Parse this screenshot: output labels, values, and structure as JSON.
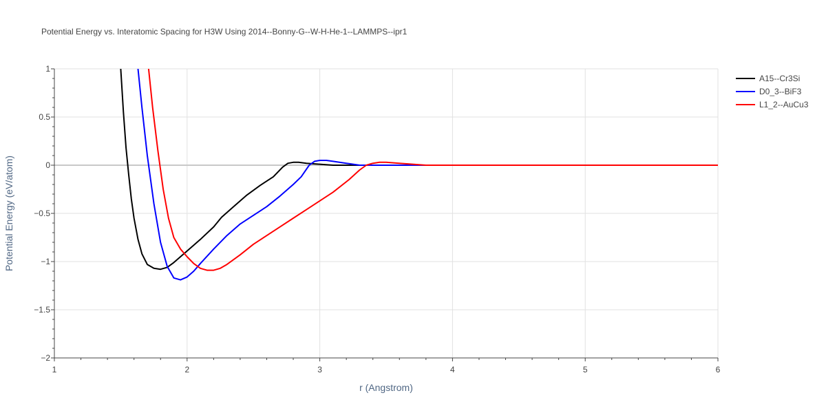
{
  "chart_data": {
    "type": "line",
    "title": "Potential Energy vs. Interatomic Spacing for H3W Using 2014--Bonny-G--W-H-He-1--LAMMPS--ipr1",
    "xlabel": "r (Angstrom)",
    "ylabel": "Potential Energy (eV/atom)",
    "xlim": [
      1,
      6
    ],
    "ylim": [
      -2,
      1
    ],
    "x_ticks": [
      1,
      2,
      3,
      4,
      5,
      6
    ],
    "x_tick_labels": [
      "1",
      "2",
      "3",
      "4",
      "5",
      "6"
    ],
    "y_ticks": [
      1,
      0.5,
      0,
      -0.5,
      -1,
      -1.5,
      -2
    ],
    "y_tick_labels": [
      "1",
      "0.5",
      "0",
      "−0.5",
      "−1",
      "−1.5",
      "−2"
    ],
    "grid": true,
    "legend_position": "top-right",
    "series": [
      {
        "name": "A15--Cr3Si",
        "color": "#000000",
        "x": [
          1.5,
          1.52,
          1.54,
          1.56,
          1.58,
          1.6,
          1.63,
          1.66,
          1.7,
          1.75,
          1.8,
          1.85,
          1.9,
          2.0,
          2.1,
          2.2,
          2.26,
          2.35,
          2.45,
          2.55,
          2.65,
          2.72,
          2.76,
          2.8,
          2.84,
          2.9,
          3.0,
          3.1,
          3.2,
          3.3,
          4.0,
          5.0,
          6.0
        ],
        "y": [
          1.0,
          0.55,
          0.18,
          -0.1,
          -0.35,
          -0.55,
          -0.77,
          -0.92,
          -1.03,
          -1.07,
          -1.08,
          -1.06,
          -1.01,
          -0.89,
          -0.77,
          -0.64,
          -0.54,
          -0.43,
          -0.31,
          -0.21,
          -0.12,
          -0.02,
          0.02,
          0.03,
          0.03,
          0.02,
          0.01,
          0.0,
          0.0,
          0.0,
          0.0,
          0.0,
          0.0
        ]
      },
      {
        "name": "D0_3--BiF3",
        "color": "#0000ff",
        "x": [
          1.63,
          1.66,
          1.7,
          1.75,
          1.8,
          1.85,
          1.9,
          1.95,
          2.0,
          2.05,
          2.1,
          2.2,
          2.3,
          2.4,
          2.5,
          2.6,
          2.7,
          2.8,
          2.86,
          2.92,
          2.96,
          3.0,
          3.05,
          3.1,
          3.2,
          3.3,
          4.0,
          5.0,
          6.0
        ],
        "y": [
          1.0,
          0.6,
          0.1,
          -0.4,
          -0.8,
          -1.05,
          -1.17,
          -1.19,
          -1.16,
          -1.1,
          -1.02,
          -0.87,
          -0.73,
          -0.61,
          -0.52,
          -0.43,
          -0.32,
          -0.2,
          -0.12,
          0.0,
          0.04,
          0.05,
          0.05,
          0.04,
          0.02,
          0.0,
          0.0,
          0.0,
          0.0
        ]
      },
      {
        "name": "L1_2--AuCu3",
        "color": "#ff0000",
        "x": [
          1.71,
          1.74,
          1.78,
          1.82,
          1.86,
          1.9,
          1.95,
          2.0,
          2.05,
          2.1,
          2.15,
          2.2,
          2.25,
          2.3,
          2.4,
          2.5,
          2.6,
          2.7,
          2.8,
          2.9,
          3.0,
          3.1,
          3.22,
          3.3,
          3.35,
          3.4,
          3.45,
          3.5,
          3.6,
          3.7,
          3.8,
          4.0,
          5.0,
          6.0
        ],
        "y": [
          1.0,
          0.6,
          0.15,
          -0.25,
          -0.55,
          -0.75,
          -0.87,
          -0.95,
          -1.02,
          -1.07,
          -1.09,
          -1.09,
          -1.07,
          -1.03,
          -0.93,
          -0.82,
          -0.73,
          -0.64,
          -0.55,
          -0.46,
          -0.37,
          -0.28,
          -0.15,
          -0.05,
          0.0,
          0.02,
          0.03,
          0.03,
          0.02,
          0.01,
          0.0,
          0.0,
          0.0,
          0.0
        ]
      }
    ]
  }
}
